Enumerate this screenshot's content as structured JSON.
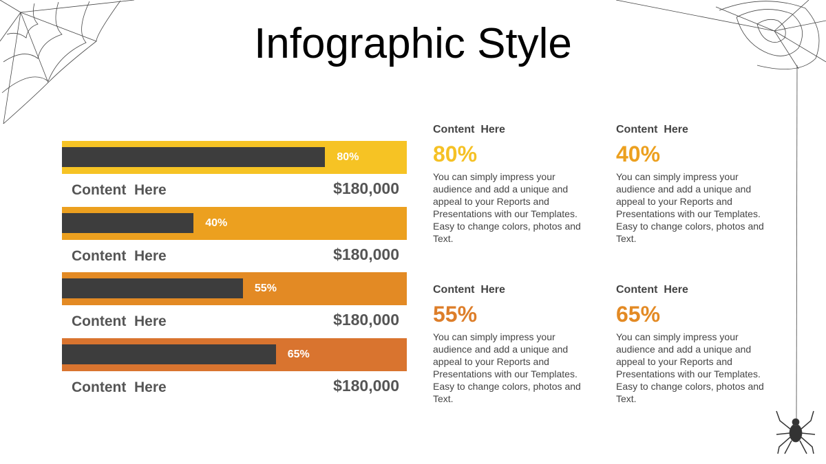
{
  "title": "Infographic Style",
  "bars": [
    {
      "value": 80,
      "value_label": "80%",
      "label": "Content  Here",
      "amount": "$180,000",
      "color": "#f6c324"
    },
    {
      "value": 40,
      "value_label": "40%",
      "label": "Content  Here",
      "amount": "$180,000",
      "color": "#eca01f"
    },
    {
      "value": 55,
      "value_label": "55%",
      "label": "Content  Here",
      "amount": "$180,000",
      "color": "#e38a24"
    },
    {
      "value": 65,
      "value_label": "65%",
      "label": "Content  Here",
      "amount": "$180,000",
      "color": "#d9742f"
    }
  ],
  "cards": [
    {
      "heading": "Content  Here",
      "percent": "80%",
      "color": "#f5c125",
      "text": "You can simply impress your audience and add a unique and appeal to your Reports and Presentations with our Templates. Easy to change colors, photos and Text."
    },
    {
      "heading": "Content  Here",
      "percent": "40%",
      "color": "#eca01f",
      "text": "You can simply impress your audience and add a unique and appeal to your Reports and Presentations with our Templates. Easy to change colors, photos and Text."
    },
    {
      "heading": "Content  Here",
      "percent": "55%",
      "color": "#dd7e2a",
      "text": "You can simply impress your audience and add a unique and appeal to your Reports and Presentations with our Templates. Easy to change colors, photos and Text."
    },
    {
      "heading": "Content  Here",
      "percent": "65%",
      "color": "#e38a24",
      "text": "You can simply impress your audience and add a unique and appeal to your Reports and Presentations with our Templates. Easy to change colors, photos and Text."
    }
  ]
}
